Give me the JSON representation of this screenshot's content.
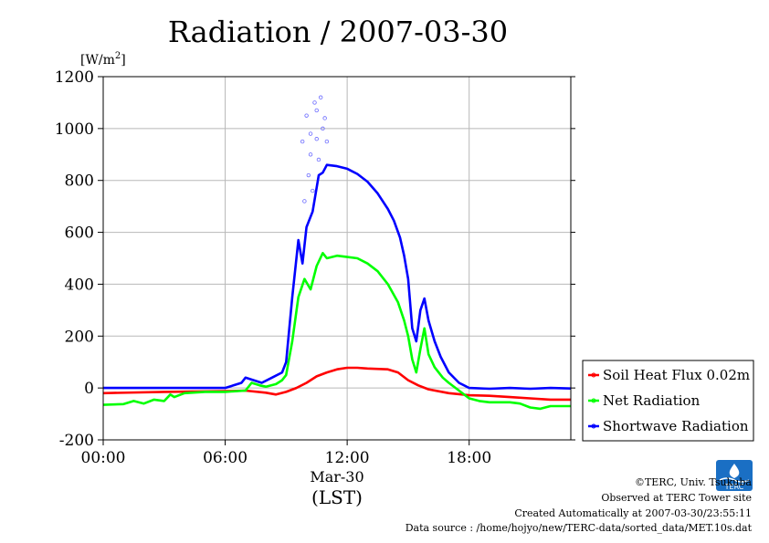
{
  "chart_data": {
    "type": "line",
    "title": "Radiation / 2007-03-30",
    "ylabel": "[W/m",
    "ylabel_sup": "2",
    "ylabel_close": "]",
    "xlabel": "(LST)",
    "xlabel_sub": "Mar-30",
    "ylim": [
      -200,
      1200
    ],
    "xlim": [
      0,
      23
    ],
    "yticks": [
      -200,
      0,
      200,
      400,
      600,
      800,
      1000,
      1200
    ],
    "ytick_labels": [
      "-200",
      "0",
      "200",
      "400",
      "600",
      "800",
      "1000",
      "1200"
    ],
    "xticks": [
      0,
      6,
      12,
      18
    ],
    "xtick_labels": [
      "00:00",
      "06:00",
      "12:00",
      "18:00"
    ],
    "grid": true,
    "legend_position": "right",
    "series": [
      {
        "name": "Soil Heat Flux 0.02m",
        "color": "#ff0000",
        "points": [
          [
            0,
            -20
          ],
          [
            3,
            -15
          ],
          [
            6,
            -12
          ],
          [
            7,
            -10
          ],
          [
            8,
            -18
          ],
          [
            8.5,
            -25
          ],
          [
            9,
            -15
          ],
          [
            9.5,
            0
          ],
          [
            10,
            20
          ],
          [
            10.5,
            45
          ],
          [
            11,
            60
          ],
          [
            11.5,
            72
          ],
          [
            12,
            78
          ],
          [
            12.5,
            78
          ],
          [
            13,
            75
          ],
          [
            14,
            72
          ],
          [
            14.5,
            60
          ],
          [
            15,
            30
          ],
          [
            15.5,
            10
          ],
          [
            16,
            -5
          ],
          [
            17,
            -20
          ],
          [
            18,
            -28
          ],
          [
            19,
            -30
          ],
          [
            20,
            -35
          ],
          [
            21,
            -40
          ],
          [
            22,
            -45
          ],
          [
            23,
            -45
          ]
        ]
      },
      {
        "name": "Net Radiation",
        "color": "#00ff00",
        "points": [
          [
            0,
            -65
          ],
          [
            1,
            -62
          ],
          [
            1.5,
            -50
          ],
          [
            2,
            -60
          ],
          [
            2.5,
            -45
          ],
          [
            3,
            -50
          ],
          [
            3.3,
            -25
          ],
          [
            3.5,
            -35
          ],
          [
            4,
            -20
          ],
          [
            5,
            -15
          ],
          [
            6,
            -15
          ],
          [
            7,
            -10
          ],
          [
            7.3,
            20
          ],
          [
            7.7,
            10
          ],
          [
            8,
            5
          ],
          [
            8.5,
            15
          ],
          [
            8.8,
            30
          ],
          [
            9,
            50
          ],
          [
            9.3,
            180
          ],
          [
            9.6,
            350
          ],
          [
            9.9,
            420
          ],
          [
            10.2,
            380
          ],
          [
            10.5,
            470
          ],
          [
            10.8,
            520
          ],
          [
            11,
            500
          ],
          [
            11.5,
            510
          ],
          [
            12,
            505
          ],
          [
            12.5,
            500
          ],
          [
            13,
            480
          ],
          [
            13.5,
            450
          ],
          [
            14,
            400
          ],
          [
            14.5,
            330
          ],
          [
            14.8,
            260
          ],
          [
            15,
            200
          ],
          [
            15.2,
            110
          ],
          [
            15.4,
            60
          ],
          [
            15.6,
            150
          ],
          [
            15.8,
            230
          ],
          [
            16,
            130
          ],
          [
            16.3,
            80
          ],
          [
            16.7,
            40
          ],
          [
            17,
            20
          ],
          [
            17.5,
            -10
          ],
          [
            18,
            -40
          ],
          [
            18.5,
            -50
          ],
          [
            19,
            -55
          ],
          [
            20,
            -55
          ],
          [
            20.5,
            -60
          ],
          [
            21,
            -75
          ],
          [
            21.5,
            -80
          ],
          [
            22,
            -70
          ],
          [
            23,
            -70
          ]
        ]
      },
      {
        "name": "Shortwave Radiation",
        "color": "#0000ff",
        "points": [
          [
            0,
            0
          ],
          [
            6,
            0
          ],
          [
            6.8,
            20
          ],
          [
            7,
            40
          ],
          [
            7.4,
            30
          ],
          [
            7.8,
            20
          ],
          [
            8.3,
            40
          ],
          [
            8.8,
            60
          ],
          [
            9,
            100
          ],
          [
            9.3,
            350
          ],
          [
            9.6,
            570
          ],
          [
            9.8,
            480
          ],
          [
            10,
            620
          ],
          [
            10.3,
            680
          ],
          [
            10.6,
            820
          ],
          [
            10.8,
            830
          ],
          [
            11,
            860
          ],
          [
            11.5,
            855
          ],
          [
            12,
            845
          ],
          [
            12.5,
            825
          ],
          [
            13,
            795
          ],
          [
            13.5,
            750
          ],
          [
            14,
            690
          ],
          [
            14.3,
            645
          ],
          [
            14.6,
            580
          ],
          [
            14.8,
            510
          ],
          [
            15,
            420
          ],
          [
            15.2,
            230
          ],
          [
            15.4,
            180
          ],
          [
            15.6,
            300
          ],
          [
            15.8,
            345
          ],
          [
            16,
            260
          ],
          [
            16.3,
            180
          ],
          [
            16.6,
            120
          ],
          [
            17,
            60
          ],
          [
            17.5,
            20
          ],
          [
            18,
            0
          ],
          [
            19,
            -3
          ],
          [
            20,
            0
          ],
          [
            21,
            -3
          ],
          [
            22,
            0
          ],
          [
            23,
            -2
          ]
        ]
      }
    ],
    "scatter_points": [
      [
        9.8,
        950
      ],
      [
        10,
        1050
      ],
      [
        10.2,
        980
      ],
      [
        10.4,
        1100
      ],
      [
        10.5,
        1070
      ],
      [
        10.7,
        1120
      ],
      [
        10.9,
        1040
      ],
      [
        10.5,
        960
      ],
      [
        10.2,
        900
      ],
      [
        10.8,
        1000
      ],
      [
        11,
        950
      ],
      [
        10.6,
        880
      ],
      [
        9.9,
        720
      ],
      [
        10.1,
        820
      ],
      [
        10.3,
        760
      ]
    ]
  },
  "credits": {
    "copyright": "©TERC, Univ. Tsukuba",
    "observed": "Observed at TERC Tower site",
    "created": "Created Automatically at 2007-03-30/23:55:11",
    "source": "Data source : /home/hojyo/new/TERC-data/sorted_data/MET.10s.dat",
    "logo_text": "TERC"
  }
}
